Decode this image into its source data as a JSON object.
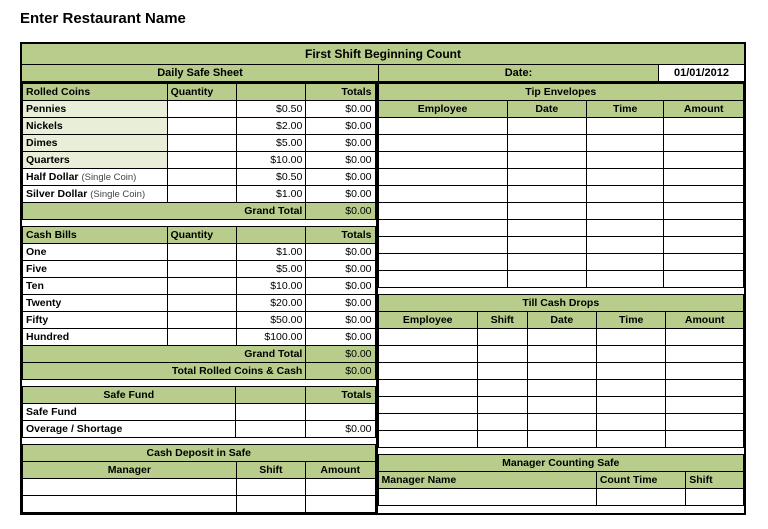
{
  "page_title": "Enter Restaurant Name",
  "header": {
    "main": "First Shift Beginning Count",
    "daily": "Daily Safe Sheet",
    "date_label": "Date:",
    "date_value": "01/01/2012"
  },
  "colors": {
    "header_green": "#b8cc8c",
    "faint_green": "#e8eed8",
    "border": "#000000",
    "bg": "#ffffff"
  },
  "rolled_coins": {
    "title": "Rolled Coins",
    "col_qty": "Quantity",
    "col_tot": "Totals",
    "rows": [
      {
        "label": "Pennies",
        "note": "",
        "qty": "",
        "denom": "$0.50",
        "total": "$0.00",
        "shade": true
      },
      {
        "label": "Nickels",
        "note": "",
        "qty": "",
        "denom": "$2.00",
        "total": "$0.00",
        "shade": true
      },
      {
        "label": "Dimes",
        "note": "",
        "qty": "",
        "denom": "$5.00",
        "total": "$0.00",
        "shade": true
      },
      {
        "label": "Quarters",
        "note": "",
        "qty": "",
        "denom": "$10.00",
        "total": "$0.00",
        "shade": true
      },
      {
        "label": "Half Dollar",
        "note": "(Single Coin)",
        "qty": "",
        "denom": "$0.50",
        "total": "$0.00",
        "shade": false
      },
      {
        "label": "Silver Dollar",
        "note": "(Single Coin)",
        "qty": "",
        "denom": "$1.00",
        "total": "$0.00",
        "shade": false
      }
    ],
    "grand_label": "Grand Total",
    "grand_value": "$0.00"
  },
  "cash_bills": {
    "title": "Cash Bills",
    "col_qty": "Quantity",
    "col_tot": "Totals",
    "rows": [
      {
        "label": "One",
        "qty": "",
        "denom": "$1.00",
        "total": "$0.00"
      },
      {
        "label": "Five",
        "qty": "",
        "denom": "$5.00",
        "total": "$0.00"
      },
      {
        "label": "Ten",
        "qty": "",
        "denom": "$10.00",
        "total": "$0.00"
      },
      {
        "label": "Twenty",
        "qty": "",
        "denom": "$20.00",
        "total": "$0.00"
      },
      {
        "label": "Fifty",
        "qty": "",
        "denom": "$50.00",
        "total": "$0.00"
      },
      {
        "label": "Hundred",
        "qty": "",
        "denom": "$100.00",
        "total": "$0.00"
      }
    ],
    "grand_label": "Grand Total",
    "grand_value": "$0.00",
    "total_both_label": "Total Rolled Coins & Cash",
    "total_both_value": "$0.00"
  },
  "safe_fund": {
    "title": "Safe Fund",
    "col_tot": "Totals",
    "rows": [
      {
        "label": "Safe Fund",
        "val": ""
      },
      {
        "label": "Overage / Shortage",
        "val": "$0.00"
      }
    ]
  },
  "cash_deposit": {
    "title": "Cash Deposit in Safe",
    "cols": [
      "Manager",
      "Shift",
      "Amount"
    ],
    "blank_rows": 2
  },
  "tip_env": {
    "title": "Tip Envelopes",
    "cols": [
      "Employee",
      "Date",
      "Time",
      "Amount"
    ],
    "blank_rows": 10
  },
  "till_drops": {
    "title": "Till Cash Drops",
    "cols": [
      "Employee",
      "Shift",
      "Date",
      "Time",
      "Amount"
    ],
    "blank_rows": 7
  },
  "mgr_count": {
    "title": "Manager Counting Safe",
    "cols": [
      "Manager Name",
      "Count Time",
      "Shift"
    ],
    "blank_rows": 1
  }
}
